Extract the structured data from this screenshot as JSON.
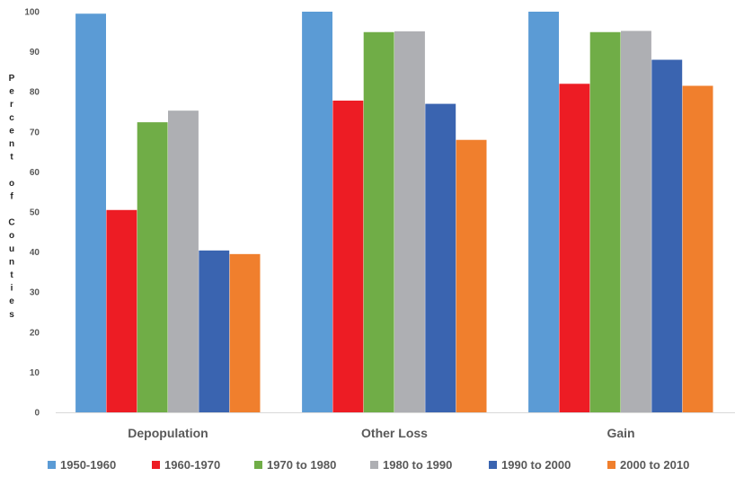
{
  "chart_data": {
    "type": "bar",
    "categories": [
      "Depopulation",
      "Other Loss",
      "Gain"
    ],
    "series": [
      {
        "name": "1950-1960",
        "color": "#5B9BD5",
        "values": [
          99.5,
          100,
          100
        ]
      },
      {
        "name": "1960-1970",
        "color": "#ED1C24",
        "values": [
          50.5,
          77.8,
          82.0
        ]
      },
      {
        "name": "1970 to 1980",
        "color": "#70AD47",
        "values": [
          72.4,
          94.9,
          94.9
        ]
      },
      {
        "name": "1980 to 1990",
        "color": "#AEAFB3",
        "values": [
          75.3,
          95.1,
          95.2
        ]
      },
      {
        "name": "1990 to 2000",
        "color": "#3A64B0",
        "values": [
          40.4,
          77.0,
          88.0
        ]
      },
      {
        "name": "2000 to 2010",
        "color": "#F07F2D",
        "values": [
          39.5,
          68.0,
          81.5
        ]
      }
    ],
    "ylabel": "Percent of Counties",
    "ylim": [
      0,
      100
    ],
    "yticks": [
      0,
      10,
      20,
      30,
      40,
      50,
      60,
      70,
      80,
      90,
      100
    ],
    "grid": false,
    "legend": "bottom"
  }
}
